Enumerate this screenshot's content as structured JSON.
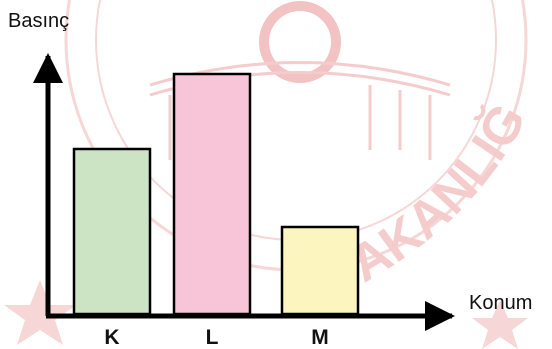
{
  "chart_data": {
    "type": "bar",
    "title": "",
    "xlabel": "Konum",
    "ylabel": "Basınç",
    "categories": [
      "K",
      "L",
      "M"
    ],
    "values": [
      5.5,
      8,
      2.9
    ],
    "ylim": [
      0,
      10
    ],
    "grid": false,
    "legend": "none",
    "colors": [
      "#cce4c4",
      "#f8c4d8",
      "#fdf5c0"
    ]
  },
  "watermark": {
    "arc_text": "BAKANLIĞI",
    "color": "#f4c7c7"
  }
}
